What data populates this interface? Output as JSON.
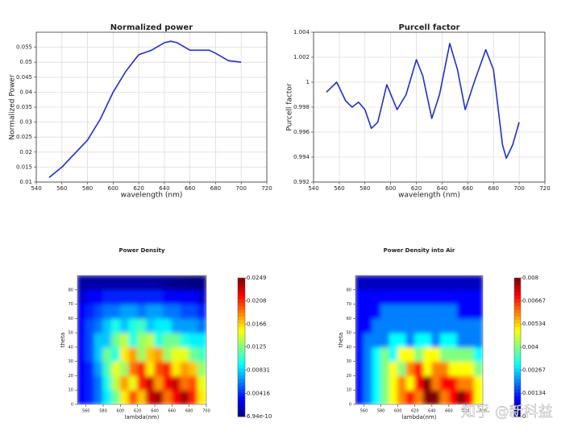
{
  "chart_data": [
    {
      "type": "line",
      "title": "Normalized power",
      "xlabel": "wavelength (nm)",
      "ylabel": "Normalized Power",
      "xlim": [
        540,
        720
      ],
      "xticks": [
        540,
        560,
        580,
        600,
        620,
        640,
        660,
        680,
        700,
        720
      ],
      "ylim": [
        0.01,
        0.06
      ],
      "yticks": [
        0.01,
        0.015,
        0.02,
        0.025,
        0.03,
        0.035,
        0.04,
        0.045,
        0.05,
        0.055
      ],
      "grid": true,
      "series": [
        {
          "color": "#1f2fd0",
          "x": [
            550,
            560,
            570,
            580,
            590,
            600,
            610,
            620,
            630,
            640,
            645,
            650,
            660,
            670,
            675,
            680,
            690,
            700
          ],
          "values": [
            0.0115,
            0.015,
            0.0195,
            0.024,
            0.031,
            0.04,
            0.047,
            0.0525,
            0.054,
            0.0565,
            0.057,
            0.0565,
            0.054,
            0.054,
            0.054,
            0.053,
            0.0505,
            0.05
          ]
        }
      ]
    },
    {
      "type": "line",
      "title": "Purcell factor",
      "xlabel": "wavelength (nm)",
      "ylabel": "Purcell factor",
      "xlim": [
        540,
        720
      ],
      "xticks": [
        540,
        560,
        580,
        600,
        620,
        640,
        660,
        680,
        700,
        720
      ],
      "ylim": [
        0.992,
        1.004
      ],
      "yticks": [
        0.992,
        0.994,
        0.996,
        0.998,
        1,
        1.002,
        1.004
      ],
      "grid": true,
      "series": [
        {
          "color": "#1f2fd0",
          "x": [
            550,
            558,
            565,
            570,
            575,
            580,
            585,
            590,
            597,
            605,
            612,
            620,
            625,
            632,
            638,
            646,
            652,
            658,
            665,
            674,
            680,
            687,
            690,
            695,
            700
          ],
          "values": [
            0.9992,
            1.0,
            0.9985,
            0.998,
            0.9984,
            0.9978,
            0.9963,
            0.9968,
            0.9998,
            0.9978,
            0.999,
            1.0018,
            1.0005,
            0.9971,
            0.999,
            1.0031,
            1.001,
            0.9978,
            1.0,
            1.0026,
            1.001,
            0.995,
            0.9939,
            0.995,
            0.9968
          ]
        }
      ]
    },
    {
      "type": "heatmap",
      "title": "Power Density",
      "xlabel": "lambda(nm)",
      "ylabel": "theta",
      "colormap": "jet",
      "xlim": [
        550,
        700
      ],
      "xticks": [
        560,
        580,
        600,
        620,
        640,
        660,
        680,
        700
      ],
      "ylim": [
        0,
        90
      ],
      "yticks": [
        0,
        10,
        20,
        30,
        40,
        50,
        60,
        70,
        80
      ],
      "xbins": [
        550,
        560,
        570,
        580,
        590,
        600,
        610,
        620,
        630,
        640,
        650,
        660,
        670,
        680,
        690,
        700
      ],
      "ybins": [
        0,
        10,
        20,
        30,
        40,
        50,
        60,
        70,
        80,
        90
      ],
      "zlim": [
        6.94e-10,
        0.0249
      ],
      "zticks": [
        6.94e-10,
        0.00416,
        0.00831,
        0.0125,
        0.0166,
        0.0208,
        0.0249
      ],
      "values": [
        [
          0.003,
          0.004,
          0.006,
          0.009,
          0.012,
          0.016,
          0.02,
          0.017,
          0.023,
          0.024,
          0.019,
          0.022,
          0.024,
          0.021,
          0.016
        ],
        [
          0.003,
          0.004,
          0.006,
          0.01,
          0.014,
          0.018,
          0.015,
          0.021,
          0.023,
          0.018,
          0.022,
          0.023,
          0.019,
          0.02,
          0.015
        ],
        [
          0.003,
          0.004,
          0.007,
          0.011,
          0.015,
          0.013,
          0.019,
          0.021,
          0.016,
          0.02,
          0.021,
          0.016,
          0.018,
          0.017,
          0.013
        ],
        [
          0.003,
          0.005,
          0.008,
          0.012,
          0.01,
          0.016,
          0.018,
          0.013,
          0.017,
          0.018,
          0.013,
          0.015,
          0.015,
          0.012,
          0.011
        ],
        [
          0.003,
          0.005,
          0.008,
          0.008,
          0.012,
          0.014,
          0.01,
          0.013,
          0.014,
          0.01,
          0.012,
          0.012,
          0.01,
          0.009,
          0.009
        ],
        [
          0.003,
          0.005,
          0.006,
          0.008,
          0.01,
          0.008,
          0.01,
          0.011,
          0.008,
          0.009,
          0.009,
          0.007,
          0.007,
          0.007,
          0.006
        ],
        [
          0.003,
          0.004,
          0.005,
          0.006,
          0.006,
          0.007,
          0.007,
          0.006,
          0.007,
          0.007,
          0.006,
          0.006,
          0.005,
          0.005,
          0.004
        ],
        [
          0.002,
          0.003,
          0.003,
          0.004,
          0.004,
          0.004,
          0.004,
          0.004,
          0.004,
          0.004,
          0.003,
          0.003,
          0.003,
          0.003,
          0.002
        ],
        [
          0.001,
          0.001,
          0.001,
          0.001,
          0.001,
          0.001,
          0.001,
          0.001,
          0.001,
          0.0008,
          0.0005,
          0.0003,
          0.0002,
          0.0001,
          0.0001
        ]
      ]
    },
    {
      "type": "heatmap",
      "title": "Power Density into Air",
      "xlabel": "lambda(nm)",
      "ylabel": "theta",
      "colormap": "jet",
      "xlim": [
        550,
        700
      ],
      "xticks": [
        560,
        580,
        600,
        620,
        640,
        660,
        680,
        700
      ],
      "ylim": [
        0,
        90
      ],
      "yticks": [
        0,
        10,
        20,
        30,
        40,
        50,
        60,
        70,
        80
      ],
      "xbins": [
        550,
        560,
        570,
        580,
        590,
        600,
        610,
        620,
        630,
        640,
        650,
        660,
        670,
        680,
        690,
        700
      ],
      "ybins": [
        0,
        10,
        20,
        30,
        40,
        50,
        60,
        70,
        80,
        90
      ],
      "zlim": [
        0,
        0.008
      ],
      "zticks": [
        0,
        0.00134,
        0.00267,
        0.004,
        0.00534,
        0.00667,
        0.008
      ],
      "values": [
        [
          0.001,
          0.002,
          0.003,
          0.004,
          0.005,
          0.006,
          0.007,
          0.006,
          0.008,
          0.008,
          0.006,
          0.007,
          0.008,
          0.007,
          0.005
        ],
        [
          0.001,
          0.002,
          0.003,
          0.004,
          0.005,
          0.006,
          0.005,
          0.007,
          0.008,
          0.006,
          0.007,
          0.007,
          0.006,
          0.006,
          0.005
        ],
        [
          0.001,
          0.002,
          0.003,
          0.004,
          0.005,
          0.004,
          0.006,
          0.007,
          0.005,
          0.006,
          0.006,
          0.005,
          0.005,
          0.005,
          0.004
        ],
        [
          0.001,
          0.002,
          0.003,
          0.004,
          0.003,
          0.005,
          0.005,
          0.004,
          0.005,
          0.005,
          0.004,
          0.004,
          0.004,
          0.004,
          0.003
        ],
        [
          0.001,
          0.002,
          0.002,
          0.002,
          0.003,
          0.003,
          0.002,
          0.003,
          0.003,
          0.002,
          0.003,
          0.003,
          0.002,
          0.002,
          0.002
        ],
        [
          0.001,
          0.001,
          0.002,
          0.002,
          0.002,
          0.002,
          0.002,
          0.002,
          0.002,
          0.002,
          0.002,
          0.002,
          0.002,
          0.002,
          0.002
        ],
        [
          0.001,
          0.001,
          0.001,
          0.002,
          0.002,
          0.002,
          0.002,
          0.002,
          0.002,
          0.002,
          0.002,
          0.002,
          0.001,
          0.001,
          0.001
        ],
        [
          0.001,
          0.001,
          0.001,
          0.001,
          0.001,
          0.001,
          0.001,
          0.001,
          0.001,
          0.001,
          0.001,
          0.001,
          0.001,
          0.001,
          0.001
        ],
        [
          0.0005,
          0.0005,
          0.0005,
          0.0005,
          0.0005,
          0.0005,
          0.0005,
          0.0005,
          0.0005,
          0.0005,
          0.0005,
          0.0005,
          0.0005,
          0.0005,
          0.0005
        ]
      ]
    }
  ],
  "watermark": "知乎 @新科益"
}
